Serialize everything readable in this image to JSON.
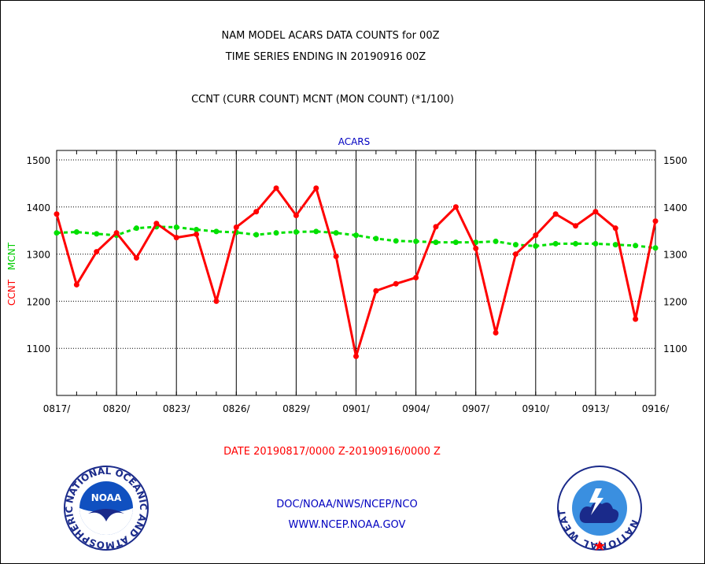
{
  "header": {
    "title_line1": "NAM MODEL ACARS DATA COUNTS for 00Z",
    "title_line2": "TIME SERIES ENDING IN 20190916 00Z",
    "subtitle": "CCNT (CURR COUNT) MCNT (MON COUNT) (*1/100)"
  },
  "footer": {
    "date_range": "DATE 20190817/0000 Z-20190916/0000 Z",
    "org_path": "DOC/NOAA/NWS/NCEP/NCO",
    "website": "WWW.NCEP.NOAA.GOV"
  },
  "logos": {
    "noaa_text": "NOAA",
    "noaa_ring_text": "NATIONAL OCEANIC AND ATMOSPHERIC ADMINISTRATION · U.S. DEPARTMENT OF COMMERCE",
    "nws_ring_text": "NATIONAL WEATHER SERVICE"
  },
  "colors": {
    "curr": "#ff0000",
    "mon": "#00e000",
    "blue_text": "#0000c0",
    "red_text": "#ff0000"
  },
  "chart_data": {
    "type": "line",
    "title": "ACARS",
    "ylabel_curr": "CCNT",
    "ylabel_mon": "MCNT",
    "ylim": [
      1000,
      1520
    ],
    "yticks": [
      1100,
      1200,
      1300,
      1400,
      1500
    ],
    "grid": true,
    "x_tick_labels": [
      "0817/",
      "0820/",
      "0823/",
      "0826/",
      "0829/",
      "0901/",
      "0904/",
      "0907/",
      "0910/",
      "0913/",
      "0916/"
    ],
    "x_days": [
      0,
      1,
      2,
      3,
      4,
      5,
      6,
      7,
      8,
      9,
      10,
      11,
      12,
      13,
      14,
      15,
      16,
      17,
      18,
      19,
      20,
      21,
      22,
      23,
      24,
      25,
      26,
      27,
      28,
      29,
      30
    ],
    "series": [
      {
        "name": "CCNT",
        "style": "solid",
        "values": [
          1385,
          1235,
          1305,
          1345,
          1292,
          1365,
          1335,
          1342,
          1200,
          1357,
          1390,
          1440,
          1382,
          1440,
          1295,
          1083,
          1222,
          1237,
          1250,
          1358,
          1400,
          1312,
          1133,
          1300,
          1340,
          1385,
          1360,
          1390,
          1355,
          1162,
          1370
        ]
      },
      {
        "name": "MCNT",
        "style": "dashed",
        "values": [
          1345,
          1347,
          1343,
          1340,
          1355,
          1358,
          1357,
          1352,
          1348,
          1346,
          1341,
          1345,
          1347,
          1348,
          1345,
          1340,
          1333,
          1328,
          1327,
          1325,
          1325,
          1325,
          1327,
          1320,
          1317,
          1322,
          1322,
          1322,
          1320,
          1318,
          1313
        ]
      }
    ]
  }
}
